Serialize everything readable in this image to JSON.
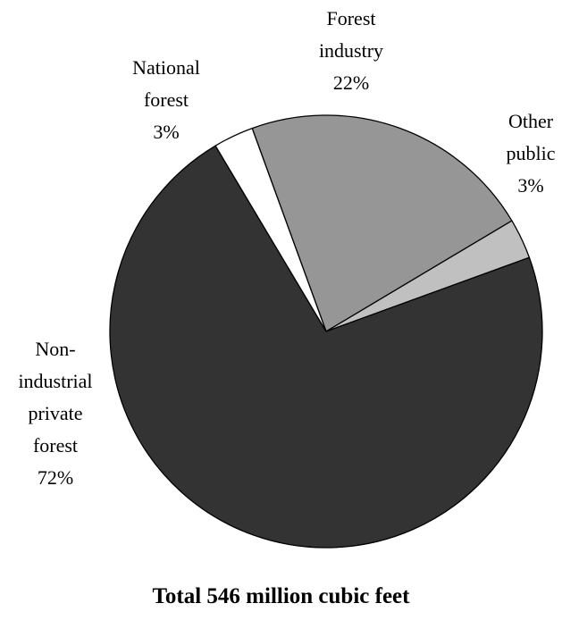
{
  "chart_data": {
    "type": "pie",
    "slices": [
      {
        "label": [
          "Forest",
          "industry"
        ],
        "value": 22,
        "value_label": "22%",
        "color": "#969696"
      },
      {
        "label": [
          "Other",
          "public"
        ],
        "value": 3,
        "value_label": "3%",
        "color": "#c0c0c0"
      },
      {
        "label": [
          "Non-",
          "industrial",
          "private",
          "forest"
        ],
        "value": 72,
        "value_label": "72%",
        "color": "#333333"
      },
      {
        "label": [
          "National",
          "forest"
        ],
        "value": 3,
        "value_label": "3%",
        "color": "#ffffff"
      }
    ],
    "footer": "Total 546 million cubic feet",
    "legend": "none (labels outside slices)"
  }
}
